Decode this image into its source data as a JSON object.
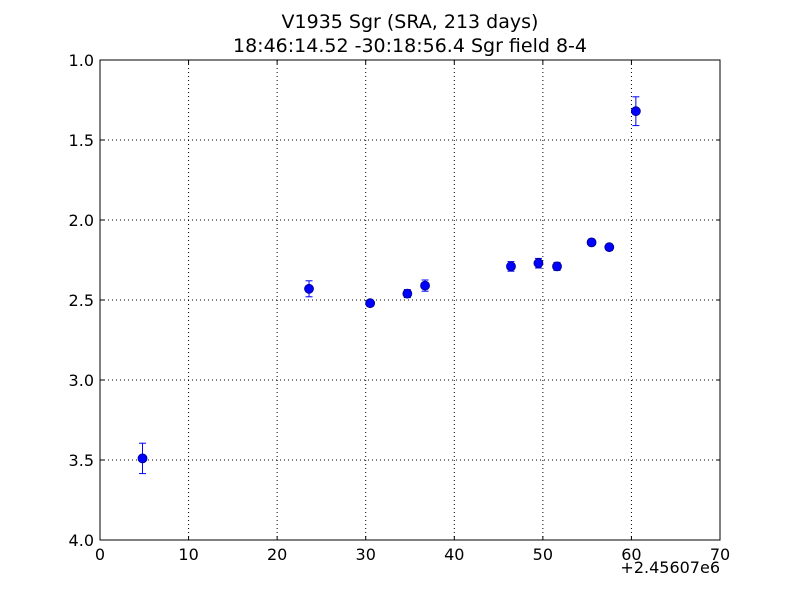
{
  "chart_data": {
    "type": "scatter",
    "title": "V1935 Sgr  (SRA, 213 days)",
    "subtitle": "18:46:14.52 -30:18:56.4 Sgr field 8-4",
    "xlabel": "",
    "ylabel": "",
    "x_offset_label": "+2.45607e6",
    "xlim": [
      0,
      70
    ],
    "ylim": [
      4.0,
      1.0
    ],
    "y_inverted": true,
    "x_ticks": [
      0,
      10,
      20,
      30,
      40,
      50,
      60,
      70
    ],
    "x_tick_labels": [
      "0",
      "10",
      "20",
      "30",
      "40",
      "50",
      "60",
      "70"
    ],
    "y_ticks": [
      1.0,
      1.5,
      2.0,
      2.5,
      3.0,
      3.5,
      4.0
    ],
    "y_tick_labels": [
      "1.0",
      "1.5",
      "2.0",
      "2.5",
      "3.0",
      "3.5",
      "4.0"
    ],
    "grid": true,
    "marker_color": "#0000ff",
    "points": [
      {
        "x": 4.8,
        "y": 3.49,
        "err": 0.095
      },
      {
        "x": 23.6,
        "y": 2.43,
        "err": 0.05
      },
      {
        "x": 30.5,
        "y": 2.52,
        "err": 0.02
      },
      {
        "x": 34.7,
        "y": 2.46,
        "err": 0.025
      },
      {
        "x": 36.7,
        "y": 2.41,
        "err": 0.035
      },
      {
        "x": 46.4,
        "y": 2.29,
        "err": 0.03
      },
      {
        "x": 49.5,
        "y": 2.27,
        "err": 0.03
      },
      {
        "x": 51.6,
        "y": 2.29,
        "err": 0.025
      },
      {
        "x": 55.5,
        "y": 2.14,
        "err": 0.02
      },
      {
        "x": 57.5,
        "y": 2.17,
        "err": 0.02
      },
      {
        "x": 60.5,
        "y": 1.32,
        "err": 0.09
      }
    ]
  }
}
